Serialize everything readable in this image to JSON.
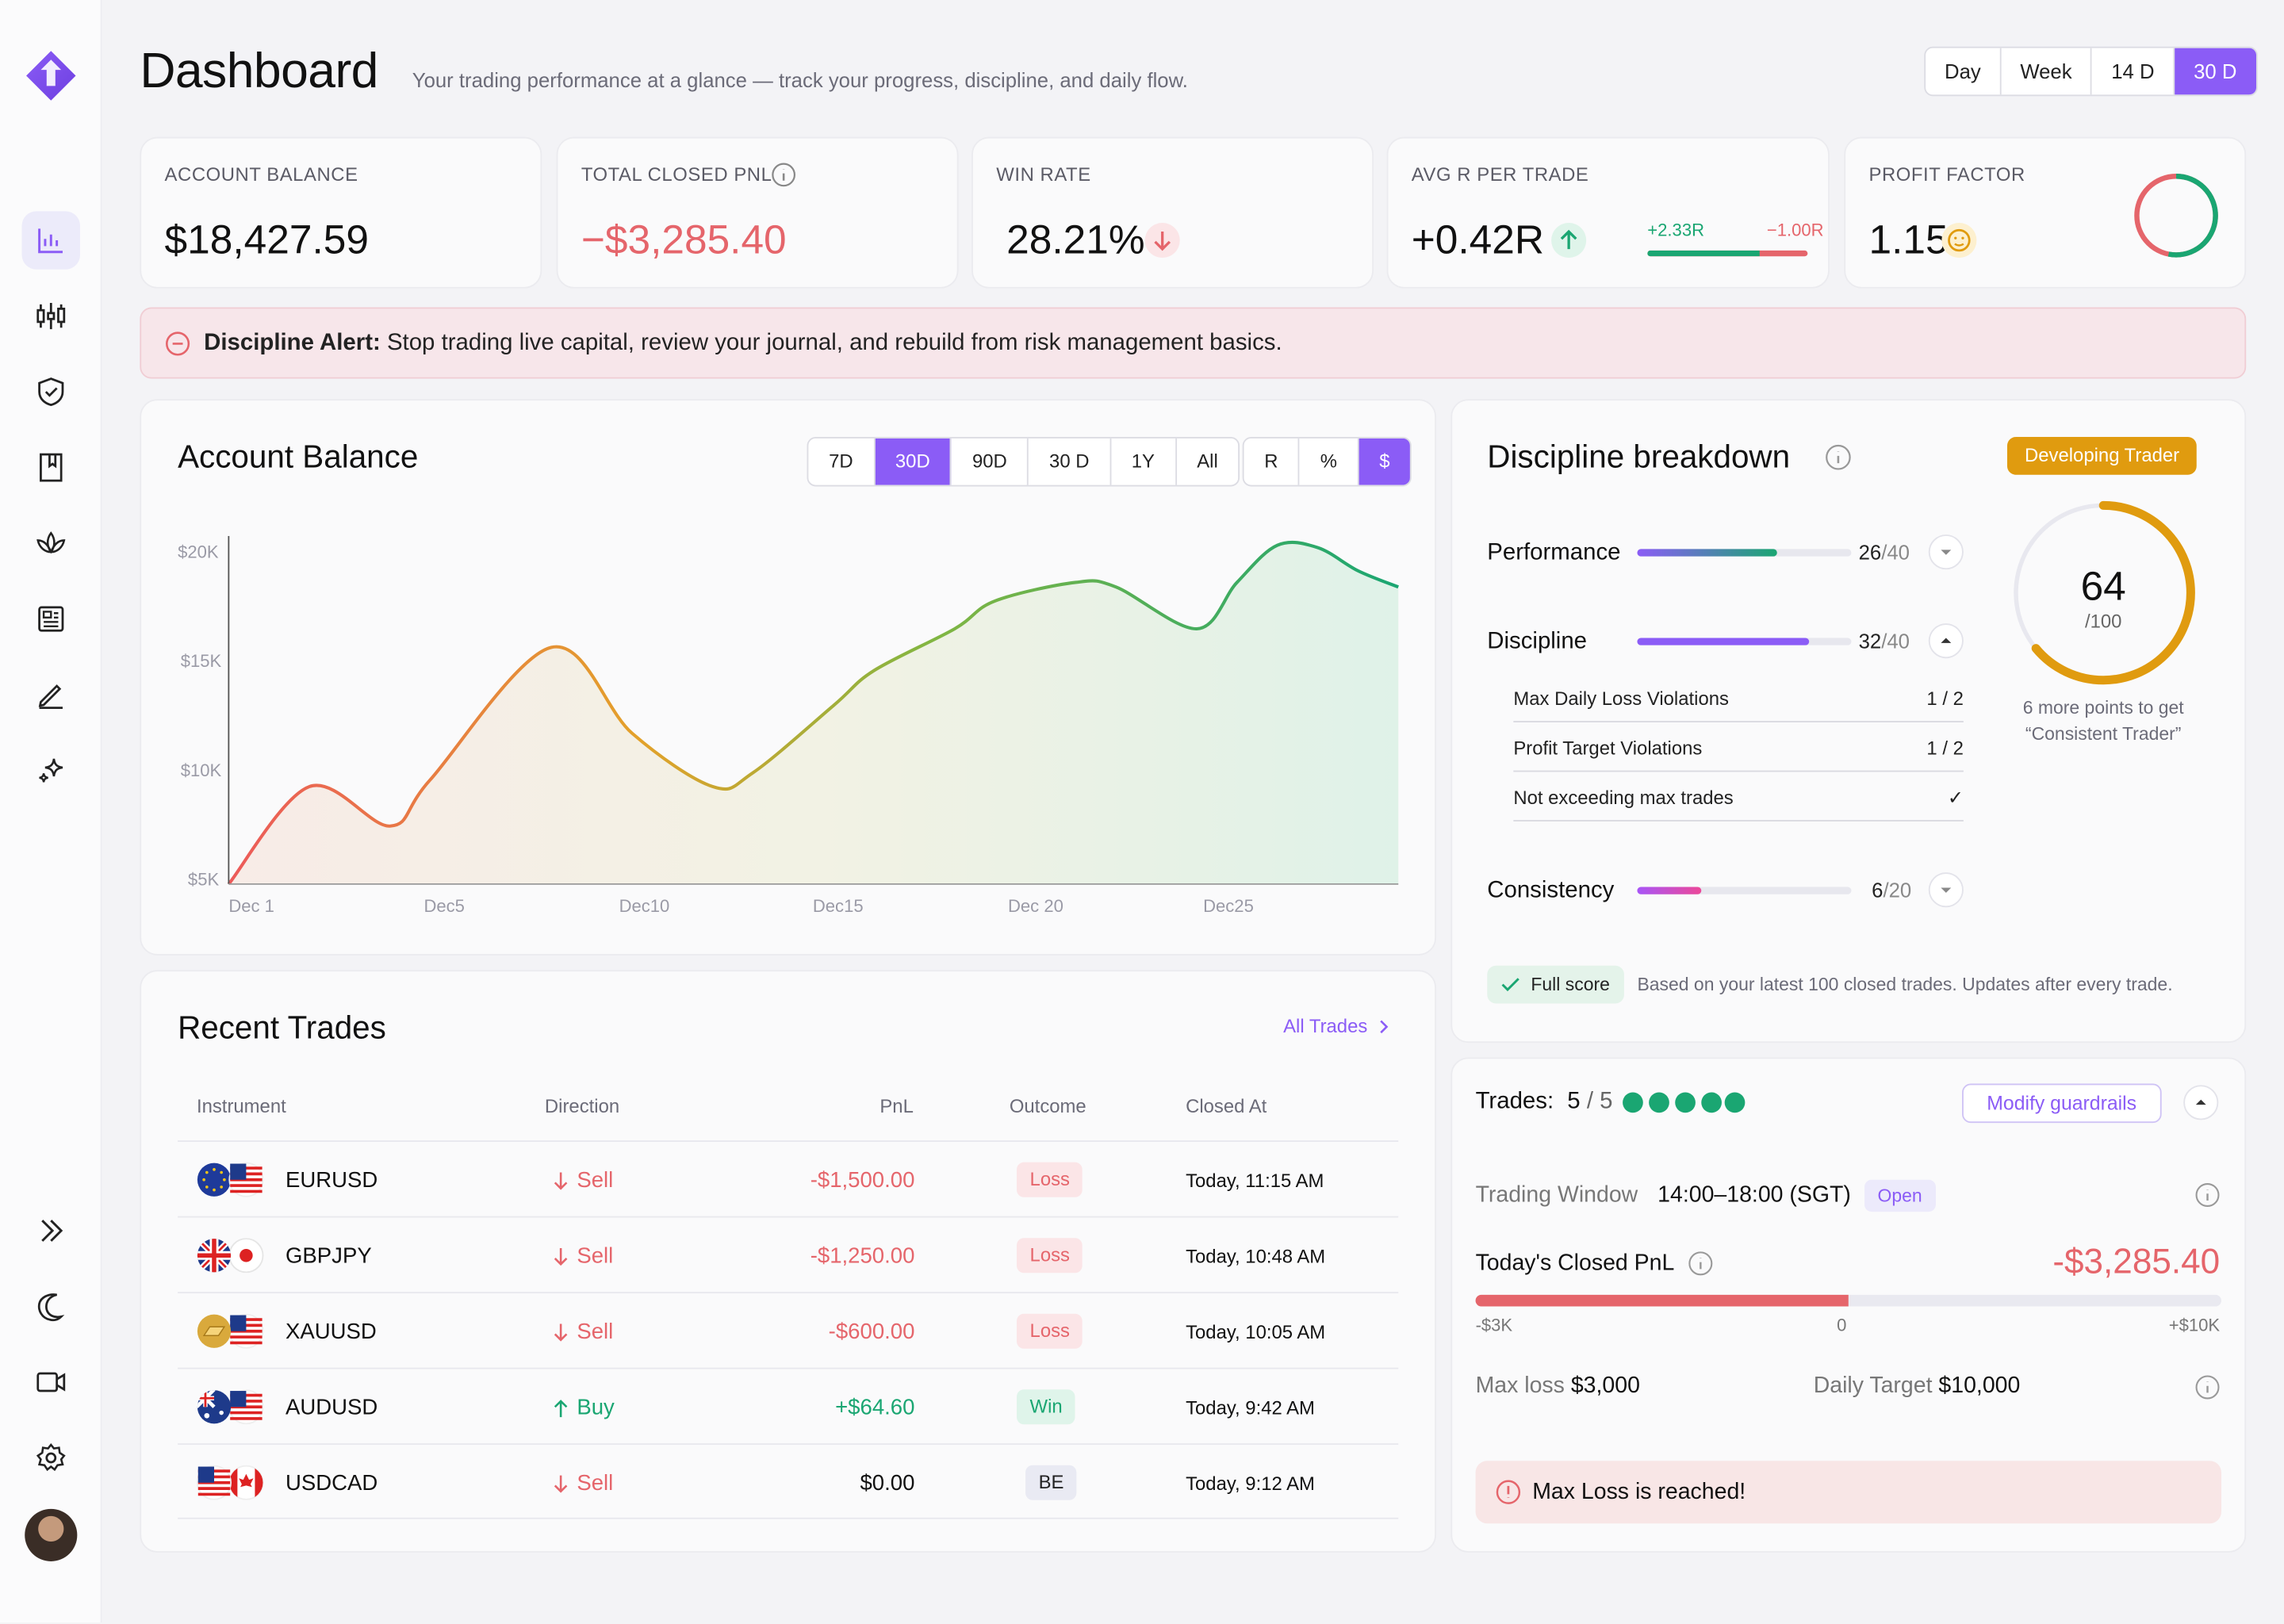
{
  "header": {
    "title": "Dashboard",
    "subtitle": "Your trading performance at a glance — track your progress, discipline, and daily flow.",
    "ranges": [
      "Day",
      "Week",
      "14 D",
      "30 D"
    ],
    "active_range": "30 D"
  },
  "kpis": {
    "account_balance": {
      "label": "ACCOUNT BALANCE",
      "value": "$18,427.59"
    },
    "total_closed_pnl": {
      "label": "TOTAL CLOSED PNL",
      "value": "−$3,285.40"
    },
    "win_rate": {
      "label": "WIN RATE",
      "value": "28.21%"
    },
    "avg_r": {
      "label": "AVG R PER TRADE",
      "value": "+0.42R",
      "win_r": "+2.33R",
      "loss_r": "−1.00R",
      "win_share": 0.7
    },
    "profit_factor": {
      "label": "PROFIT FACTOR",
      "value": "1.15",
      "ring_fraction": 0.53
    }
  },
  "alert": {
    "title": "Discipline Alert:",
    "message": " Stop trading live capital, review your journal, and rebuild from risk management basics."
  },
  "balance_chart": {
    "title": "Account Balance",
    "periods": [
      "7D",
      "30D",
      "90D",
      "30 D",
      "1Y",
      "All"
    ],
    "active_period": "30D",
    "units": [
      "R",
      "%",
      "$"
    ],
    "active_unit": "$"
  },
  "chart_data": {
    "type": "area",
    "title": "Account Balance",
    "x_tick_labels": [
      "Dec 1",
      "Dec5",
      "Dec10",
      "Dec15",
      "Dec 20",
      "Dec25"
    ],
    "y_tick_labels": [
      "$20K",
      "$15K",
      "$10K",
      "$5K"
    ],
    "ylim": [
      5000,
      20000
    ],
    "xlim": [
      1,
      30
    ],
    "series": [
      {
        "x": [
          1,
          3,
          5,
          6,
          9,
          11,
          13,
          14,
          16,
          17,
          19,
          20,
          22,
          23,
          25,
          26,
          27,
          28,
          29,
          30
        ],
        "values": [
          5000,
          9200,
          7500,
          9500,
          15200,
          11500,
          9200,
          9800,
          12700,
          14200,
          16000,
          17200,
          18000,
          17800,
          16000,
          18000,
          19600,
          19500,
          18500,
          17800
        ]
      }
    ]
  },
  "recent_trades": {
    "title": "Recent Trades",
    "all_link": "All Trades",
    "columns": [
      "Instrument",
      "Direction",
      "PnL",
      "Outcome",
      "Closed At"
    ],
    "rows": [
      {
        "instrument": "EURUSD",
        "direction": "Sell",
        "pnl": "-$1,500.00",
        "outcome": "Loss",
        "closed": "Today, 11:15 AM"
      },
      {
        "instrument": "GBPJPY",
        "direction": "Sell",
        "pnl": "-$1,250.00",
        "outcome": "Loss",
        "closed": "Today, 10:48 AM"
      },
      {
        "instrument": "XAUUSD",
        "direction": "Sell",
        "pnl": "-$600.00",
        "outcome": "Loss",
        "closed": "Today, 10:05 AM"
      },
      {
        "instrument": "AUDUSD",
        "direction": "Buy",
        "pnl": "+$64.60",
        "outcome": "Win",
        "closed": "Today, 9:42 AM"
      },
      {
        "instrument": "USDCAD",
        "direction": "Sell",
        "pnl": "$0.00",
        "outcome": "BE",
        "closed": "Today, 9:12 AM"
      }
    ]
  },
  "discipline": {
    "title": "Discipline breakdown",
    "level_badge": "Developing Trader",
    "score": "64",
    "score_max": "/100",
    "score_fraction": 0.64,
    "next_level": "6 more points to get “Consistent Trader”",
    "performance": {
      "label": "Performance",
      "score": "26",
      "max": "/40",
      "fraction": 0.65
    },
    "discipline": {
      "label": "Discipline",
      "score": "32",
      "max": "/40",
      "fraction": 0.8
    },
    "sub_items": [
      {
        "label": "Max Daily Loss Violations",
        "value": "1 / 2"
      },
      {
        "label": "Profit Target Violations",
        "value": "1 / 2"
      },
      {
        "label": "Not exceeding max trades",
        "value": "✓"
      }
    ],
    "consistency": {
      "label": "Consistency",
      "score": "6",
      "max": "/20",
      "fraction": 0.3
    },
    "full_score": "Full score",
    "footnote": "Based on your latest 100 closed trades. Updates after every trade."
  },
  "guardrails": {
    "trades_label": "Trades:",
    "trades_count": "5",
    "trades_max": "/ 5",
    "modify": "Modify guardrails",
    "window_label": "Trading Window",
    "window_value": "14:00–18:00 (SGT)",
    "window_status": "Open",
    "pnl_label": "Today's Closed PnL",
    "pnl_value": "-$3,285.40",
    "range_min": "-$3K",
    "range_zero": "0",
    "range_max": "+$10K",
    "max_loss_label": "Max loss",
    "max_loss_value": "$3,000",
    "target_label": "Daily Target",
    "target_value": "$10,000",
    "warning": "Max Loss is reached!"
  },
  "colors": {
    "accent": "#8b5cf6",
    "negative": "#e5656b",
    "positive": "#1aa672",
    "warning": "#e09b0f"
  }
}
